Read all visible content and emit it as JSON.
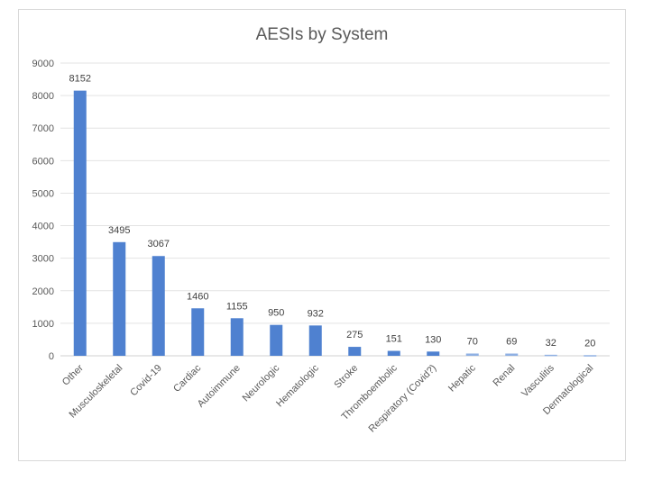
{
  "chart_data": {
    "type": "bar",
    "title": "AESIs by System",
    "xlabel": "",
    "ylabel": "",
    "ylim": [
      0,
      9000
    ],
    "yticks": [
      0,
      1000,
      2000,
      3000,
      4000,
      5000,
      6000,
      7000,
      8000,
      9000
    ],
    "grid": true,
    "legend": "none",
    "bar_color": "#4f81d0",
    "categories": [
      "Other",
      "Musculoskeletal",
      "Covid-19",
      "Cardiac",
      "Autoimmune",
      "Neurologic",
      "Hematologic",
      "Stroke",
      "Thromboembolic",
      "Respiratory (Covid?)",
      "Hepatic",
      "Renal",
      "Vasculitis",
      "Dermatological"
    ],
    "values": [
      8152,
      3495,
      3067,
      1460,
      1155,
      950,
      932,
      275,
      151,
      130,
      70,
      69,
      32,
      20
    ]
  }
}
